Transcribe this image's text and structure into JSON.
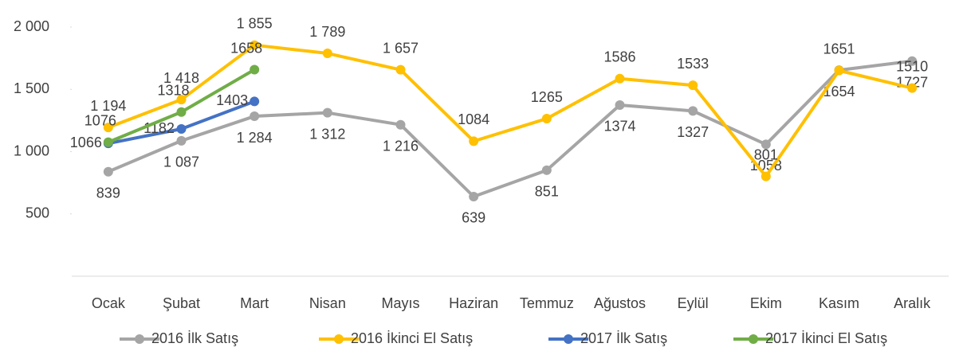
{
  "chart_data": {
    "type": "line",
    "categories": [
      "Ocak",
      "Şubat",
      "Mart",
      "Nisan",
      "Mayıs",
      "Haziran",
      "Temmuz",
      "Ağustos",
      "Eylül",
      "Ekim",
      "Kasım",
      "Aralık"
    ],
    "ylim": [
      0,
      2000
    ],
    "yticks": [
      500,
      {
        "value": 1000,
        "label": "1 000"
      },
      {
        "value": 1500,
        "label": "1 500"
      },
      {
        "value": 2000,
        "label": "2 000"
      }
    ],
    "grid": false,
    "legend": "bottom",
    "series": [
      {
        "name": "2016 İlk Satış",
        "color": "#a5a5a5",
        "values": [
          839,
          1087,
          1284,
          1312,
          1216,
          639,
          851,
          1374,
          1327,
          1058,
          1654,
          1727
        ],
        "value_labels": [
          "839",
          "1 087",
          "1 284",
          "1 312",
          "1 216",
          "639",
          "851",
          "1374",
          "1327",
          "1058",
          "1654",
          "1727"
        ]
      },
      {
        "name": "2016 İkinci El Satış",
        "color": "#ffc000",
        "values": [
          1194,
          1418,
          1855,
          1789,
          1657,
          1084,
          1265,
          1586,
          1533,
          801,
          1651,
          1510
        ],
        "value_labels": [
          "1 194",
          "1 418",
          "1 855",
          "1 789",
          "1 657",
          "1084",
          "1265",
          "1586",
          "1533",
          "801",
          "1651",
          "1510"
        ]
      },
      {
        "name": "2017 İlk Satış",
        "color": "#4472c4",
        "values": [
          1066,
          1182,
          1403,
          null,
          null,
          null,
          null,
          null,
          null,
          null,
          null,
          null
        ],
        "value_labels": [
          "1066",
          "1182",
          "1403",
          null,
          null,
          null,
          null,
          null,
          null,
          null,
          null,
          null
        ]
      },
      {
        "name": "2017 İkinci El Satış",
        "color": "#70ad47",
        "values": [
          1076,
          1318,
          1658,
          null,
          null,
          null,
          null,
          null,
          null,
          null,
          null,
          null
        ],
        "value_labels": [
          "1076",
          "1318",
          "1658",
          null,
          null,
          null,
          null,
          null,
          null,
          null,
          null,
          null
        ]
      }
    ]
  }
}
